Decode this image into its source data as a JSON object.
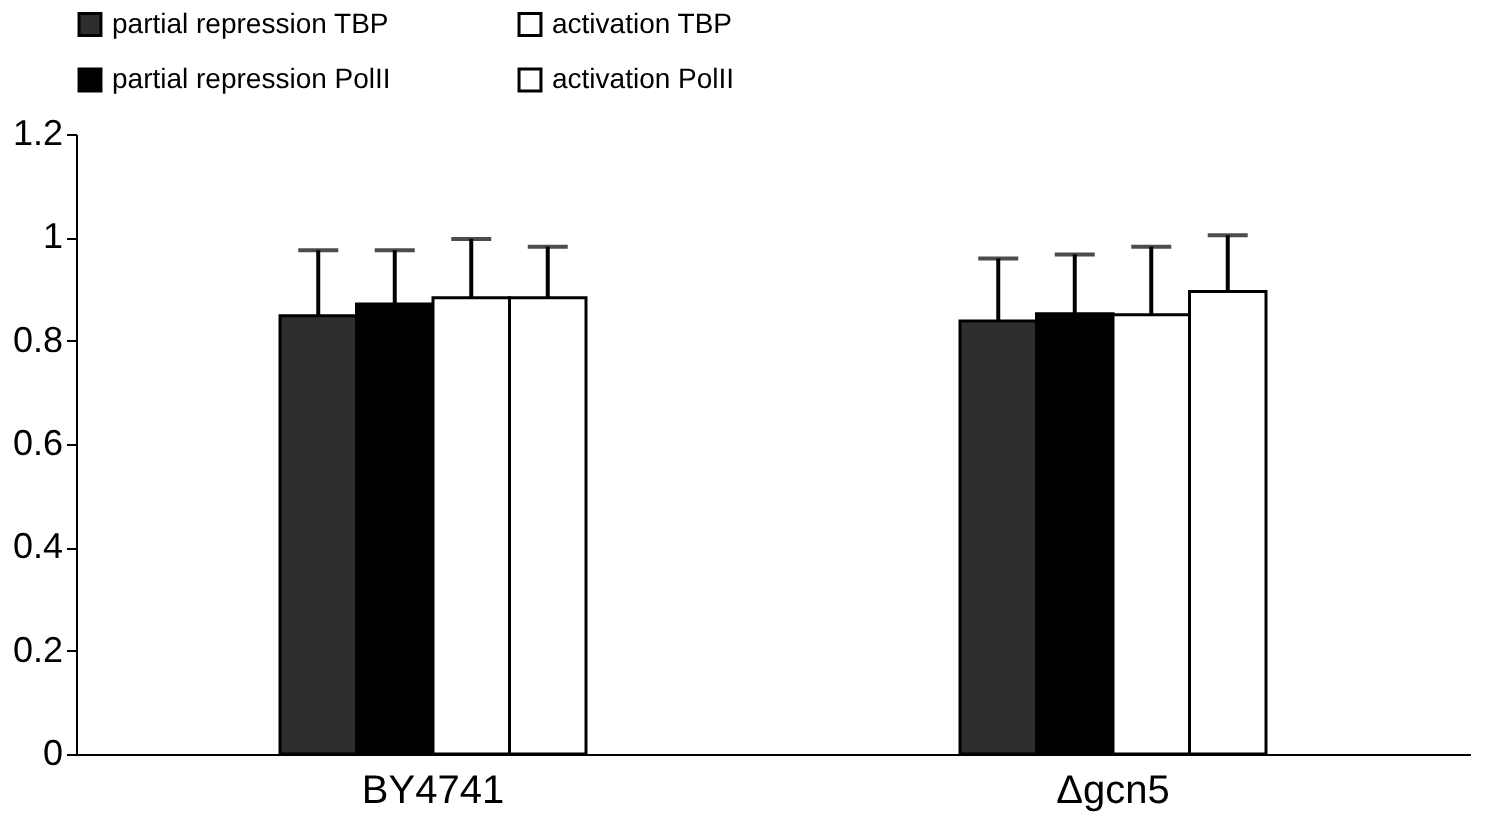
{
  "chart_data": {
    "type": "bar",
    "categories": [
      "BY4741",
      "Δgcn5"
    ],
    "series": [
      {
        "name": "partial repression TBP",
        "color": "#2e2e2e",
        "values": [
          0.848,
          0.838
        ],
        "errors": [
          [
            0.848,
            0.975
          ],
          [
            0.838,
            0.959
          ]
        ]
      },
      {
        "name": "partial repression PolII",
        "color": "#000000",
        "values": [
          0.871,
          0.852
        ],
        "errors": [
          [
            0.871,
            0.975
          ],
          [
            0.852,
            0.967
          ]
        ]
      },
      {
        "name": "activation TBP",
        "color": "#ffffff",
        "values": [
          0.883,
          0.85
        ],
        "errors": [
          [
            0.883,
            0.997
          ],
          [
            0.85,
            0.982
          ]
        ]
      },
      {
        "name": "activation PolII",
        "color": "#ffffff",
        "values": [
          0.883,
          0.895
        ],
        "errors": [
          [
            0.883,
            0.982
          ],
          [
            0.895,
            1.004
          ]
        ]
      }
    ],
    "ylim": [
      0,
      1.2
    ],
    "yticks": [
      0,
      0.2,
      0.4,
      0.6,
      0.8,
      1,
      1.2
    ],
    "grid": false,
    "legend": "top"
  }
}
